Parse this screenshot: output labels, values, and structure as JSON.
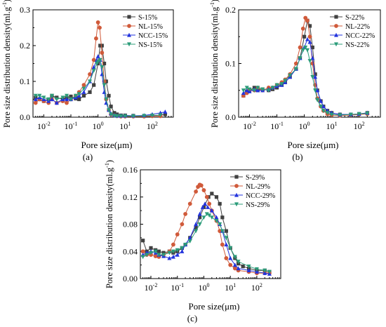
{
  "chart_data": [
    {
      "panel": "(a)",
      "type": "line",
      "xscale": "log",
      "xlim": [
        0.004,
        600
      ],
      "ylim": [
        0,
        0.3
      ],
      "yticks": [
        0.0,
        0.1,
        0.2,
        0.3
      ],
      "ytick_labels": [
        "0.0",
        "0.1",
        "0.2",
        "0.3"
      ],
      "xtick_labels": [
        "10-2",
        "10-1",
        "100",
        "101",
        "102"
      ],
      "xlabel": "Pore size(μm)",
      "ylabel": "Pore size distribution density(ml.g-1)",
      "legend": "top-right",
      "series": [
        {
          "name": "S-15%",
          "color": "#404040",
          "marker": "square",
          "x": [
            0.005,
            0.007,
            0.01,
            0.015,
            0.02,
            0.03,
            0.05,
            0.07,
            0.1,
            0.15,
            0.2,
            0.3,
            0.5,
            0.7,
            1.0,
            1.2,
            1.4,
            1.7,
            2.0,
            2.5,
            3.0,
            4.0,
            5.0,
            7.0,
            10,
            20,
            50,
            100,
            200,
            300
          ],
          "values": [
            0.055,
            0.05,
            0.045,
            0.05,
            0.06,
            0.055,
            0.05,
            0.055,
            0.058,
            0.052,
            0.05,
            0.06,
            0.07,
            0.09,
            0.15,
            0.2,
            0.2,
            0.15,
            0.1,
            0.06,
            0.03,
            0.012,
            0.008,
            0.005,
            0.005,
            0.004,
            0.003,
            0.004,
            0.006,
            0.008
          ]
        },
        {
          "name": "NL-15%",
          "color": "#d05a3a",
          "marker": "circle",
          "x": [
            0.005,
            0.007,
            0.01,
            0.015,
            0.02,
            0.03,
            0.05,
            0.07,
            0.1,
            0.15,
            0.2,
            0.3,
            0.5,
            0.7,
            0.85,
            1.0,
            1.15,
            1.4,
            1.7,
            2.0,
            2.5,
            3.0,
            4.0,
            5.0,
            7.0,
            10,
            20,
            50,
            100,
            200
          ],
          "values": [
            0.04,
            0.05,
            0.045,
            0.04,
            0.05,
            0.04,
            0.045,
            0.04,
            0.05,
            0.06,
            0.07,
            0.09,
            0.12,
            0.16,
            0.22,
            0.265,
            0.25,
            0.18,
            0.1,
            0.05,
            0.02,
            0.008,
            0.005,
            0.003,
            0.002,
            0.002,
            0.002,
            0.002,
            0.003,
            0.003
          ]
        },
        {
          "name": "NCC-15%",
          "color": "#2233dd",
          "marker": "triangle-up",
          "x": [
            0.005,
            0.007,
            0.01,
            0.015,
            0.02,
            0.03,
            0.05,
            0.07,
            0.1,
            0.15,
            0.2,
            0.3,
            0.5,
            0.7,
            0.9,
            1.0,
            1.2,
            1.4,
            1.7,
            2.0,
            2.5,
            3.0,
            4.0,
            5.0,
            7.0,
            10,
            20,
            50,
            100,
            200,
            300
          ],
          "values": [
            0.05,
            0.055,
            0.05,
            0.045,
            0.05,
            0.04,
            0.05,
            0.05,
            0.05,
            0.055,
            0.06,
            0.07,
            0.1,
            0.14,
            0.16,
            0.17,
            0.16,
            0.12,
            0.07,
            0.04,
            0.02,
            0.01,
            0.006,
            0.004,
            0.004,
            0.004,
            0.004,
            0.005,
            0.008,
            0.012,
            0.015
          ]
        },
        {
          "name": "NS-15%",
          "color": "#2c9c7a",
          "marker": "triangle-down",
          "x": [
            0.005,
            0.007,
            0.01,
            0.015,
            0.02,
            0.03,
            0.05,
            0.07,
            0.1,
            0.15,
            0.2,
            0.3,
            0.5,
            0.7,
            0.9,
            1.0,
            1.2,
            1.4,
            1.7,
            2.0,
            2.5,
            3.0,
            4.0,
            5.0,
            7.0,
            10,
            20,
            50,
            100,
            200
          ],
          "values": [
            0.06,
            0.06,
            0.055,
            0.05,
            0.06,
            0.05,
            0.055,
            0.06,
            0.05,
            0.06,
            0.065,
            0.08,
            0.1,
            0.13,
            0.15,
            0.155,
            0.16,
            0.14,
            0.09,
            0.05,
            0.02,
            0.008,
            0.004,
            0.003,
            0.003,
            0.003,
            0.003,
            0.004,
            0.005,
            0.006
          ]
        }
      ]
    },
    {
      "panel": "(b)",
      "type": "line",
      "xscale": "log",
      "xlim": [
        0.004,
        600
      ],
      "ylim": [
        0,
        0.2
      ],
      "yticks": [
        0.0,
        0.1,
        0.2
      ],
      "ytick_labels": [
        "0.0",
        "0.1",
        "0.2"
      ],
      "xtick_labels": [
        "10-2",
        "10-1",
        "100",
        "101",
        "102"
      ],
      "xlabel": "Pore size(μm)",
      "ylabel": "Pore size distribution density(ml.g-1)",
      "legend": "top-right",
      "series": [
        {
          "name": "S-22%",
          "color": "#404040",
          "marker": "square",
          "x": [
            0.006,
            0.008,
            0.01,
            0.015,
            0.02,
            0.03,
            0.05,
            0.07,
            0.1,
            0.15,
            0.2,
            0.3,
            0.5,
            0.7,
            1.0,
            1.3,
            1.6,
            2.0,
            2.5,
            3.0,
            4.0,
            5.0,
            7.0,
            10,
            20,
            50,
            100,
            200
          ],
          "values": [
            0.04,
            0.048,
            0.05,
            0.055,
            0.05,
            0.052,
            0.05,
            0.052,
            0.055,
            0.06,
            0.065,
            0.075,
            0.09,
            0.11,
            0.15,
            0.18,
            0.17,
            0.13,
            0.08,
            0.05,
            0.03,
            0.02,
            0.012,
            0.008,
            0.005,
            0.005,
            0.006,
            0.008
          ]
        },
        {
          "name": "NL-22%",
          "color": "#d05a3a",
          "marker": "circle",
          "x": [
            0.006,
            0.008,
            0.01,
            0.015,
            0.02,
            0.03,
            0.05,
            0.07,
            0.1,
            0.15,
            0.2,
            0.3,
            0.5,
            0.7,
            0.9,
            1.1,
            1.3,
            1.6,
            2.0,
            2.5,
            3.0,
            4.0,
            5.0,
            7.0,
            10,
            20,
            50,
            100,
            200
          ],
          "values": [
            0.04,
            0.045,
            0.05,
            0.05,
            0.055,
            0.05,
            0.055,
            0.055,
            0.06,
            0.065,
            0.07,
            0.08,
            0.1,
            0.13,
            0.165,
            0.185,
            0.18,
            0.15,
            0.1,
            0.06,
            0.035,
            0.02,
            0.012,
            0.006,
            0.004,
            0.003,
            0.004,
            0.005,
            0.006
          ]
        },
        {
          "name": "NCC-22%",
          "color": "#2233dd",
          "marker": "triangle-up",
          "x": [
            0.006,
            0.008,
            0.01,
            0.015,
            0.02,
            0.03,
            0.05,
            0.07,
            0.1,
            0.15,
            0.2,
            0.3,
            0.5,
            0.7,
            1.0,
            1.3,
            1.6,
            2.0,
            2.5,
            3.0,
            4.0,
            5.0,
            7.0,
            10,
            20,
            50,
            100,
            200
          ],
          "values": [
            0.045,
            0.05,
            0.048,
            0.052,
            0.05,
            0.05,
            0.052,
            0.055,
            0.058,
            0.06,
            0.065,
            0.075,
            0.09,
            0.11,
            0.13,
            0.145,
            0.14,
            0.11,
            0.075,
            0.05,
            0.03,
            0.02,
            0.012,
            0.008,
            0.005,
            0.005,
            0.006,
            0.008
          ]
        },
        {
          "name": "NS-22%",
          "color": "#2c9c7a",
          "marker": "triangle-down",
          "x": [
            0.006,
            0.008,
            0.01,
            0.015,
            0.02,
            0.03,
            0.05,
            0.07,
            0.1,
            0.15,
            0.2,
            0.3,
            0.5,
            0.7,
            0.9,
            1.1,
            1.3,
            1.6,
            2.0,
            2.5,
            3.0,
            4.0,
            5.0,
            7.0,
            10,
            20,
            50,
            100,
            200
          ],
          "values": [
            0.05,
            0.055,
            0.052,
            0.05,
            0.055,
            0.052,
            0.05,
            0.055,
            0.06,
            0.062,
            0.068,
            0.078,
            0.09,
            0.11,
            0.125,
            0.13,
            0.125,
            0.105,
            0.075,
            0.05,
            0.032,
            0.02,
            0.012,
            0.008,
            0.005,
            0.004,
            0.005,
            0.006,
            0.007
          ]
        }
      ]
    },
    {
      "panel": "(c)",
      "type": "line",
      "xscale": "log",
      "xlim": [
        0.004,
        800
      ],
      "ylim": [
        0,
        0.16
      ],
      "yticks": [
        0.0,
        0.04,
        0.08,
        0.12,
        0.16
      ],
      "ytick_labels": [
        "0.00",
        "0.04",
        "0.08",
        "0.12",
        "0.16"
      ],
      "xtick_labels": [
        "10-2",
        "10-1",
        "100",
        "101",
        "102"
      ],
      "xlabel": "Pore size(μm)",
      "ylabel": "Pore size distribution density(ml.g-1)",
      "legend": "top-right",
      "series": [
        {
          "name": "S-29%",
          "color": "#404040",
          "marker": "square",
          "x": [
            0.005,
            0.007,
            0.01,
            0.015,
            0.02,
            0.03,
            0.05,
            0.07,
            0.1,
            0.15,
            0.2,
            0.3,
            0.5,
            0.7,
            1.0,
            1.5,
            2.0,
            3.0,
            4.0,
            5.0,
            7.0,
            10,
            15,
            20,
            30,
            50,
            100,
            200,
            300
          ],
          "values": [
            0.056,
            0.04,
            0.045,
            0.042,
            0.04,
            0.038,
            0.04,
            0.038,
            0.04,
            0.045,
            0.05,
            0.06,
            0.075,
            0.09,
            0.105,
            0.12,
            0.125,
            0.12,
            0.11,
            0.09,
            0.07,
            0.045,
            0.03,
            0.022,
            0.018,
            0.015,
            0.012,
            0.012,
            0.01
          ]
        },
        {
          "name": "NL-29%",
          "color": "#d05a3a",
          "marker": "circle",
          "x": [
            0.005,
            0.007,
            0.01,
            0.015,
            0.02,
            0.03,
            0.05,
            0.07,
            0.1,
            0.15,
            0.2,
            0.3,
            0.5,
            0.6,
            0.7,
            0.8,
            1.0,
            1.3,
            1.6,
            2.0,
            3.0,
            4.0,
            5.0,
            7.0,
            10,
            15,
            20,
            50,
            100,
            200,
            300
          ],
          "values": [
            0.04,
            0.035,
            0.035,
            0.033,
            0.032,
            0.035,
            0.04,
            0.05,
            0.065,
            0.08,
            0.095,
            0.11,
            0.128,
            0.135,
            0.138,
            0.137,
            0.13,
            0.12,
            0.11,
            0.1,
            0.085,
            0.07,
            0.05,
            0.03,
            0.02,
            0.015,
            0.012,
            0.01,
            0.008,
            0.008,
            0.008
          ]
        },
        {
          "name": "NCC-29%",
          "color": "#2233dd",
          "marker": "triangle-up",
          "x": [
            0.005,
            0.007,
            0.01,
            0.015,
            0.02,
            0.03,
            0.05,
            0.07,
            0.1,
            0.15,
            0.2,
            0.3,
            0.5,
            0.7,
            0.9,
            1.1,
            1.4,
            2.0,
            3.0,
            4.0,
            5.0,
            7.0,
            10,
            15,
            20,
            50,
            100,
            200,
            300
          ],
          "values": [
            0.035,
            0.038,
            0.04,
            0.038,
            0.035,
            0.033,
            0.03,
            0.032,
            0.035,
            0.04,
            0.05,
            0.06,
            0.08,
            0.095,
            0.105,
            0.11,
            0.105,
            0.1,
            0.09,
            0.08,
            0.07,
            0.05,
            0.03,
            0.02,
            0.015,
            0.012,
            0.01,
            0.008,
            0.007
          ]
        },
        {
          "name": "NS-29%",
          "color": "#2c9c7a",
          "marker": "triangle-down",
          "x": [
            0.005,
            0.007,
            0.01,
            0.015,
            0.02,
            0.03,
            0.05,
            0.07,
            0.1,
            0.15,
            0.2,
            0.3,
            0.5,
            0.7,
            1.0,
            1.3,
            1.6,
            2.0,
            3.0,
            4.0,
            5.0,
            7.0,
            10,
            15,
            20,
            50,
            100,
            200,
            300
          ],
          "values": [
            0.032,
            0.035,
            0.038,
            0.04,
            0.035,
            0.035,
            0.038,
            0.04,
            0.042,
            0.045,
            0.05,
            0.055,
            0.07,
            0.08,
            0.09,
            0.095,
            0.093,
            0.09,
            0.085,
            0.08,
            0.07,
            0.06,
            0.045,
            0.032,
            0.025,
            0.018,
            0.014,
            0.012,
            0.01
          ]
        }
      ]
    }
  ]
}
